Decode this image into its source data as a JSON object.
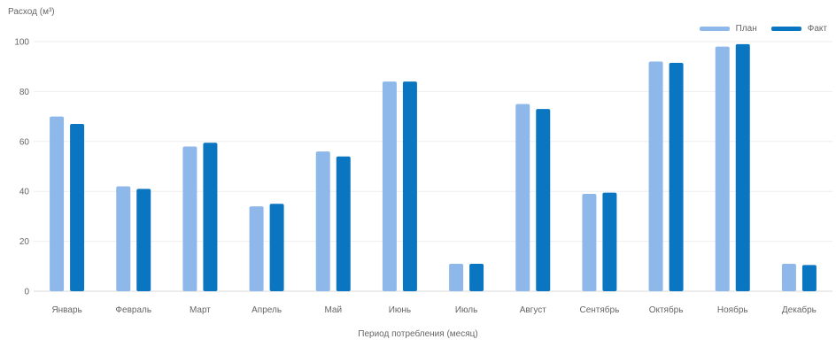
{
  "chart_data": {
    "type": "bar",
    "ylabel": "Расход (м³)",
    "xlabel": "Период потребления (месяц)",
    "categories": [
      "Январь",
      "Февраль",
      "Март",
      "Апрель",
      "Май",
      "Июнь",
      "Июль",
      "Август",
      "Сентябрь",
      "Октябрь",
      "Ноябрь",
      "Декабрь"
    ],
    "series": [
      {
        "name": "План",
        "color": "#8fb8ea",
        "values": [
          70,
          42,
          58,
          34,
          56,
          84,
          11,
          75,
          39,
          92,
          98,
          11
        ]
      },
      {
        "name": "Факт",
        "color": "#0a76c2",
        "values": [
          67,
          41,
          59.5,
          35,
          54,
          84,
          11,
          73,
          39.5,
          91.5,
          99,
          10.5
        ]
      }
    ],
    "ylim": [
      0,
      100
    ],
    "yticks": [
      0,
      20,
      40,
      60,
      80,
      100
    ],
    "grid": true,
    "legend_position": "top-right"
  }
}
